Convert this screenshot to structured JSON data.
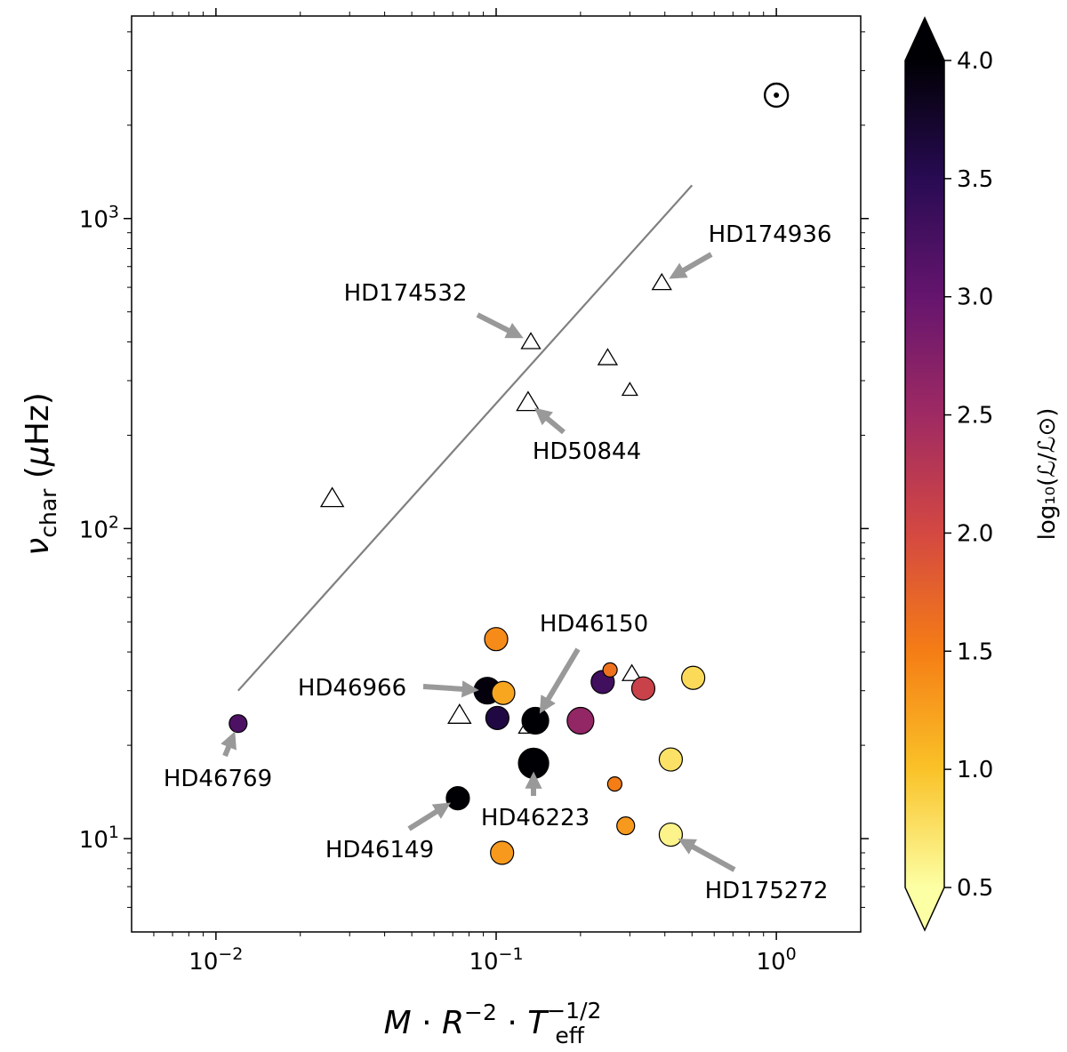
{
  "chart_data": {
    "type": "scatter",
    "title": "",
    "xlabel": "M · R⁻² · T_eff^(-1/2)",
    "ylabel": "ν_char (μHz)",
    "xscale": "log",
    "yscale": "log",
    "xlim": [
      0.005,
      2.0
    ],
    "ylim": [
      5,
      4500
    ],
    "x_ticks": [
      {
        "value": 0.01,
        "base": "10",
        "exp": "−2"
      },
      {
        "value": 0.1,
        "base": "10",
        "exp": "−1"
      },
      {
        "value": 1.0,
        "base": "10",
        "exp": "0"
      }
    ],
    "y_ticks": [
      {
        "value": 10,
        "base": "10",
        "exp": "1"
      },
      {
        "value": 100,
        "base": "10",
        "exp": "2"
      },
      {
        "value": 1000,
        "base": "10",
        "exp": "3"
      }
    ],
    "colorbar": {
      "label": "log₁₀(ℒ/ℒ⊙)",
      "range": [
        0.5,
        4.0
      ],
      "ticks": [
        "0.5",
        "1.0",
        "1.5",
        "2.0",
        "2.5",
        "3.0",
        "3.5",
        "4.0"
      ],
      "colormap": [
        "#fcffa4",
        "#fac228",
        "#f57d15",
        "#d44842",
        "#9f2a63",
        "#65156e",
        "#280b53",
        "#000004"
      ]
    },
    "trend_line": {
      "x": [
        0.012,
        0.5
      ],
      "y": [
        30,
        1280
      ]
    },
    "sun_marker": {
      "x": 1.0,
      "y": 2500,
      "symbol": "⊙"
    },
    "series": [
      {
        "name": "triangles",
        "points": [
          {
            "x": 0.026,
            "y": 125,
            "size": "large"
          },
          {
            "x": 0.13,
            "y": 255,
            "size": "large"
          },
          {
            "x": 0.133,
            "y": 400,
            "size": "medium"
          },
          {
            "x": 0.25,
            "y": 355,
            "size": "medium"
          },
          {
            "x": 0.3,
            "y": 280,
            "size": "small"
          },
          {
            "x": 0.39,
            "y": 620,
            "size": "medium"
          },
          {
            "x": 0.074,
            "y": 25,
            "size": "large"
          },
          {
            "x": 0.13,
            "y": 23,
            "size": "medium"
          },
          {
            "x": 0.305,
            "y": 34,
            "size": "medium"
          }
        ]
      },
      {
        "name": "circles",
        "points": [
          {
            "x": 0.012,
            "y": 23.5,
            "logL": 3.2,
            "size": "small"
          },
          {
            "x": 0.1,
            "y": 44,
            "logL": 1.4,
            "size": "medium"
          },
          {
            "x": 0.093,
            "y": 30,
            "logL": 3.95,
            "size": "large"
          },
          {
            "x": 0.106,
            "y": 29.5,
            "logL": 1.2,
            "size": "medium"
          },
          {
            "x": 0.101,
            "y": 24.5,
            "logL": 3.6,
            "size": "medium"
          },
          {
            "x": 0.138,
            "y": 24,
            "logL": 4.0,
            "size": "large"
          },
          {
            "x": 0.136,
            "y": 17.5,
            "logL": 4.0,
            "size": "xlarge"
          },
          {
            "x": 0.073,
            "y": 13.5,
            "logL": 4.0,
            "size": "medium"
          },
          {
            "x": 0.2,
            "y": 24,
            "logL": 2.6,
            "size": "large"
          },
          {
            "x": 0.24,
            "y": 32,
            "logL": 3.3,
            "size": "medium"
          },
          {
            "x": 0.255,
            "y": 35,
            "logL": 1.6,
            "size": "tiny"
          },
          {
            "x": 0.335,
            "y": 30.5,
            "logL": 2.1,
            "size": "medium"
          },
          {
            "x": 0.505,
            "y": 33,
            "logL": 0.8,
            "size": "medium"
          },
          {
            "x": 0.42,
            "y": 18,
            "logL": 0.75,
            "size": "medium"
          },
          {
            "x": 0.265,
            "y": 15,
            "logL": 1.5,
            "size": "tiny"
          },
          {
            "x": 0.29,
            "y": 11,
            "logL": 1.3,
            "size": "small"
          },
          {
            "x": 0.42,
            "y": 10.3,
            "logL": 0.6,
            "size": "medium"
          },
          {
            "x": 0.105,
            "y": 9,
            "logL": 1.3,
            "size": "medium"
          }
        ]
      }
    ],
    "annotations": [
      {
        "text": "HD174936",
        "x": 0.39,
        "y": 620
      },
      {
        "text": "HD174532",
        "x": 0.133,
        "y": 400
      },
      {
        "text": "HD50844",
        "x": 0.13,
        "y": 255
      },
      {
        "text": "HD46150",
        "x": 0.138,
        "y": 24
      },
      {
        "text": "HD46966",
        "x": 0.093,
        "y": 30
      },
      {
        "text": "HD46769",
        "x": 0.012,
        "y": 23.5
      },
      {
        "text": "HD46223",
        "x": 0.136,
        "y": 17.5
      },
      {
        "text": "HD46149",
        "x": 0.073,
        "y": 13.5
      },
      {
        "text": "HD175272",
        "x": 0.42,
        "y": 10.3
      }
    ]
  }
}
